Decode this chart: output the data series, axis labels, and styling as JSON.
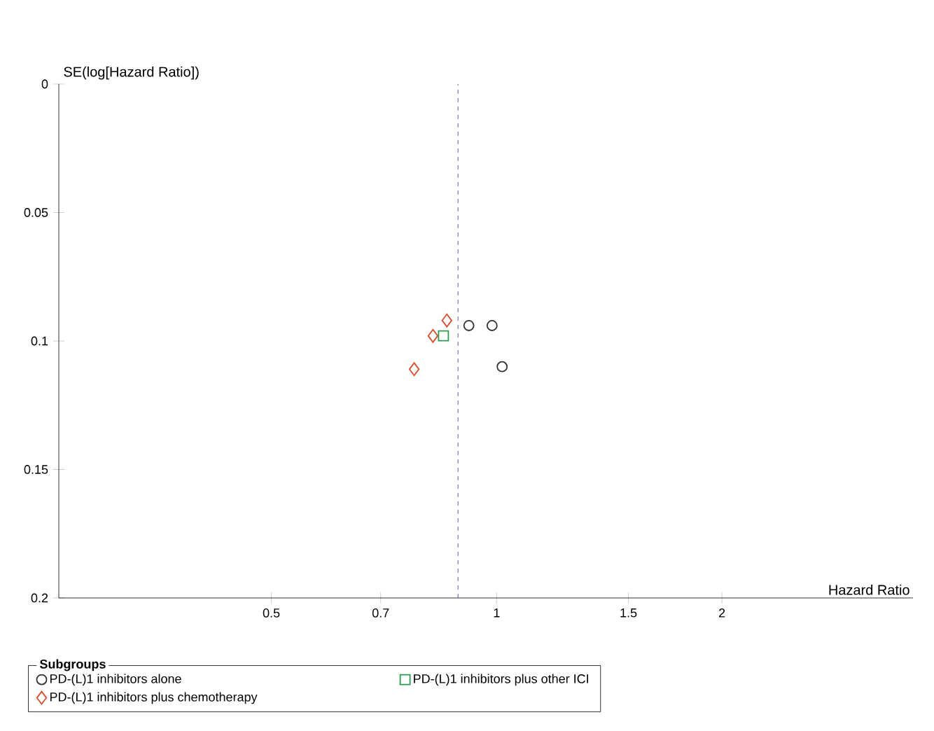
{
  "chart_data": {
    "type": "scatter",
    "xlabel": "Hazard Ratio",
    "ylabel": "SE(log[Hazard Ratio])",
    "legend_title": "Subgroups",
    "log": "x",
    "xlim": [
      0.26,
      3.6
    ],
    "ylim": [
      0.2,
      0
    ],
    "xticks": [
      0.5,
      0.7,
      1,
      1.5,
      2
    ],
    "yticks": [
      0,
      0.05,
      0.1,
      0.15,
      0.2
    ],
    "legend": "bottom",
    "grid": false,
    "ref_lines": [
      {
        "axis": "x",
        "value": 0.888,
        "color": "#3a3a9a",
        "line_style": "dashed"
      }
    ],
    "series": [
      {
        "name": "PD-(L)1 inhibitors alone",
        "color": "#333333",
        "marker": "circle",
        "x": [
          0.918,
          0.986,
          1.017
        ],
        "values": [
          0.094,
          0.094,
          0.11
        ]
      },
      {
        "name": "PD-(L)1 inhibitors plus chemotherapy",
        "color": "#d9502e",
        "marker": "diamond",
        "x": [
          0.858,
          0.822,
          0.776
        ],
        "values": [
          0.092,
          0.098,
          0.111
        ]
      },
      {
        "name": "PD-(L)1 inhibitors plus other ICI",
        "color": "#2e9a4e",
        "marker": "square",
        "x": [
          0.849
        ],
        "values": [
          0.098
        ]
      }
    ]
  }
}
